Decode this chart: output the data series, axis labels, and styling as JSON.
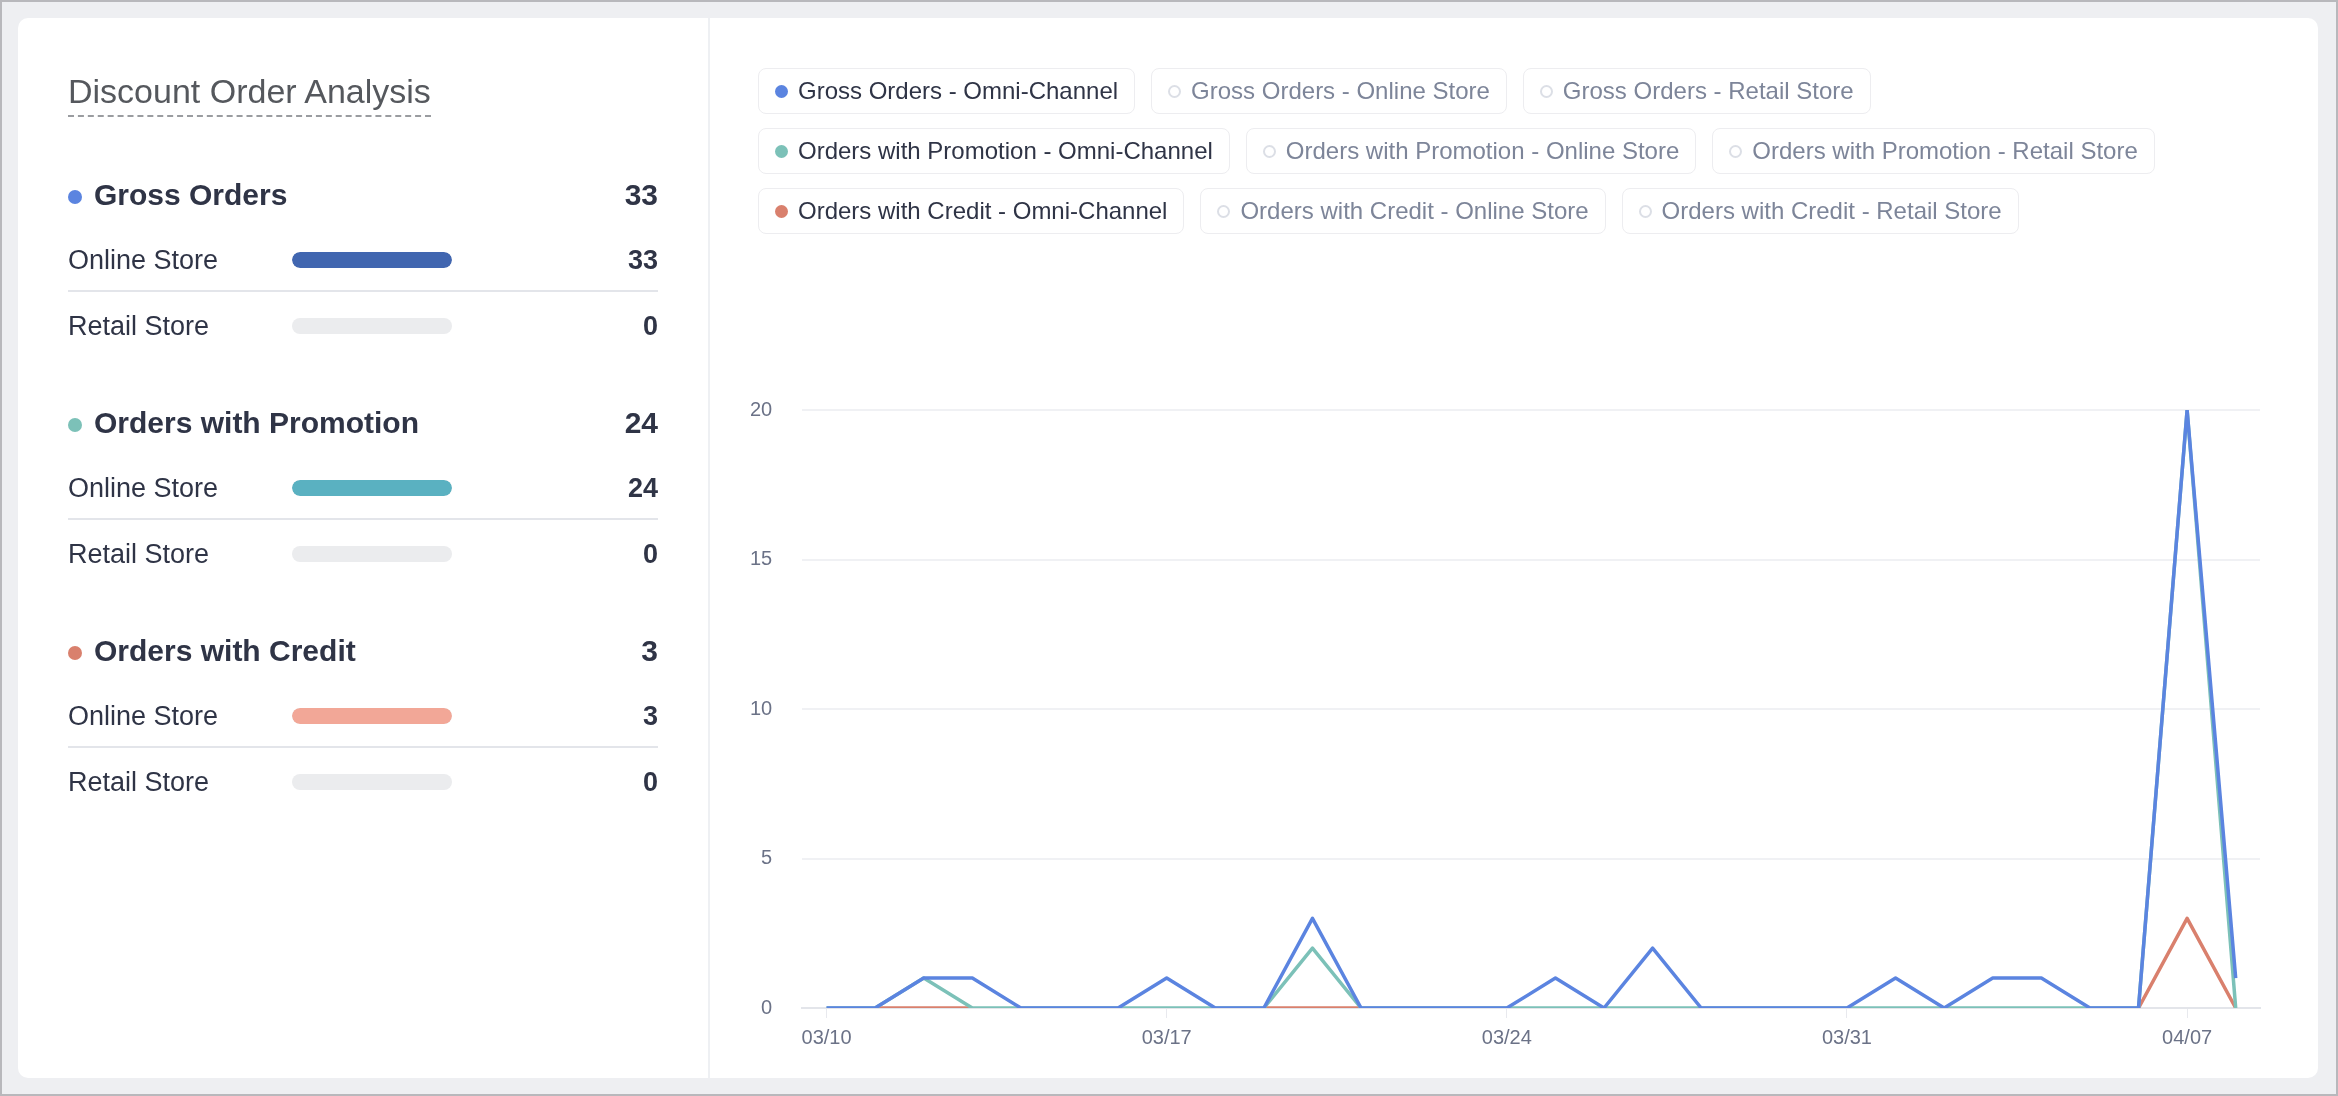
{
  "chart_data": [
    {
      "type": "other",
      "title": "Discount Order Analysis",
      "categories": [
        "Gross Orders",
        "Online Store",
        "Retail Store",
        "Orders with Promotion",
        "Online Store",
        "Retail Store",
        "Orders with Credit",
        "Online Store",
        "Retail Store"
      ],
      "values": [
        33,
        33,
        0,
        24,
        24,
        0,
        3,
        3,
        0
      ],
      "colors": [
        "#5b84e0",
        "#4166b0",
        "#ebecee",
        "#7cc1b8",
        "#5ab1c1",
        "#ebecee",
        "#d9806d",
        "#f2a797",
        "#ebecee"
      ],
      "data_labels": true
    },
    {
      "type": "line",
      "categories": [
        "03/10",
        null,
        null,
        null,
        null,
        null,
        null,
        "03/17",
        null,
        null,
        null,
        null,
        null,
        null,
        "03/24",
        null,
        null,
        null,
        null,
        null,
        null,
        "03/31",
        null,
        null,
        null,
        null,
        null,
        null,
        "04/07",
        null
      ],
      "series": [
        {
          "name": "Gross Orders - Omni-Channel",
          "color": "#5b84e0",
          "values": [
            0,
            0,
            1,
            1,
            0,
            0,
            0,
            1,
            0,
            0,
            3,
            0,
            0,
            0,
            0,
            1,
            0,
            2,
            0,
            0,
            0,
            0,
            1,
            0,
            1,
            1,
            0,
            0,
            20,
            1
          ]
        },
        {
          "name": "Gross Orders - Online Store",
          "color": "#dcdfe6",
          "values": [
            null,
            null,
            null,
            null,
            null,
            null,
            null,
            null,
            null,
            null,
            null,
            null,
            null,
            null,
            null,
            null,
            null,
            null,
            null,
            null,
            null,
            null,
            null,
            null,
            null,
            null,
            null,
            null,
            null,
            null
          ]
        },
        {
          "name": "Gross Orders - Retail Store",
          "color": "#dcdfe6",
          "values": [
            null,
            null,
            null,
            null,
            null,
            null,
            null,
            null,
            null,
            null,
            null,
            null,
            null,
            null,
            null,
            null,
            null,
            null,
            null,
            null,
            null,
            null,
            null,
            null,
            null,
            null,
            null,
            null,
            null,
            null
          ]
        },
        {
          "name": "Orders with Promotion - Omni-Channel",
          "color": "#7cc1b8",
          "values": [
            0,
            0,
            1,
            0,
            0,
            0,
            0,
            0,
            0,
            0,
            2,
            0,
            0,
            0,
            0,
            0,
            0,
            0,
            0,
            0,
            0,
            0,
            0,
            0,
            0,
            0,
            0,
            0,
            20,
            0
          ]
        },
        {
          "name": "Orders with Promotion - Online Store",
          "color": "#dcdfe6",
          "values": [
            null,
            null,
            null,
            null,
            null,
            null,
            null,
            null,
            null,
            null,
            null,
            null,
            null,
            null,
            null,
            null,
            null,
            null,
            null,
            null,
            null,
            null,
            null,
            null,
            null,
            null,
            null,
            null,
            null,
            null
          ]
        },
        {
          "name": "Orders with Promotion - Retail Store",
          "color": "#dcdfe6",
          "values": [
            null,
            null,
            null,
            null,
            null,
            null,
            null,
            null,
            null,
            null,
            null,
            null,
            null,
            null,
            null,
            null,
            null,
            null,
            null,
            null,
            null,
            null,
            null,
            null,
            null,
            null,
            null,
            null,
            null,
            null
          ]
        },
        {
          "name": "Orders with Credit - Omni-Channel",
          "color": "#d9806d",
          "values": [
            null,
            0,
            0,
            0,
            null,
            null,
            null,
            null,
            null,
            0,
            0,
            0,
            null,
            null,
            null,
            null,
            null,
            null,
            null,
            null,
            null,
            null,
            null,
            null,
            null,
            null,
            null,
            0,
            3,
            0
          ]
        },
        {
          "name": "Orders with Credit - Online Store",
          "color": "#dcdfe6",
          "values": [
            null,
            null,
            null,
            null,
            null,
            null,
            null,
            null,
            null,
            null,
            null,
            null,
            null,
            null,
            null,
            null,
            null,
            null,
            null,
            null,
            null,
            null,
            null,
            null,
            null,
            null,
            null,
            null,
            null,
            null
          ]
        },
        {
          "name": "Orders with Credit - Retail Store",
          "color": "#dcdfe6",
          "values": [
            null,
            null,
            null,
            null,
            null,
            null,
            null,
            null,
            null,
            null,
            null,
            null,
            null,
            null,
            null,
            null,
            null,
            null,
            null,
            null,
            null,
            null,
            null,
            null,
            null,
            null,
            null,
            null,
            null,
            null
          ]
        }
      ],
      "ylim": [
        0,
        20
      ],
      "yticks": [
        0,
        5,
        10,
        15,
        20
      ],
      "grid": "y",
      "legend": "top",
      "marker": "none"
    }
  ]
}
